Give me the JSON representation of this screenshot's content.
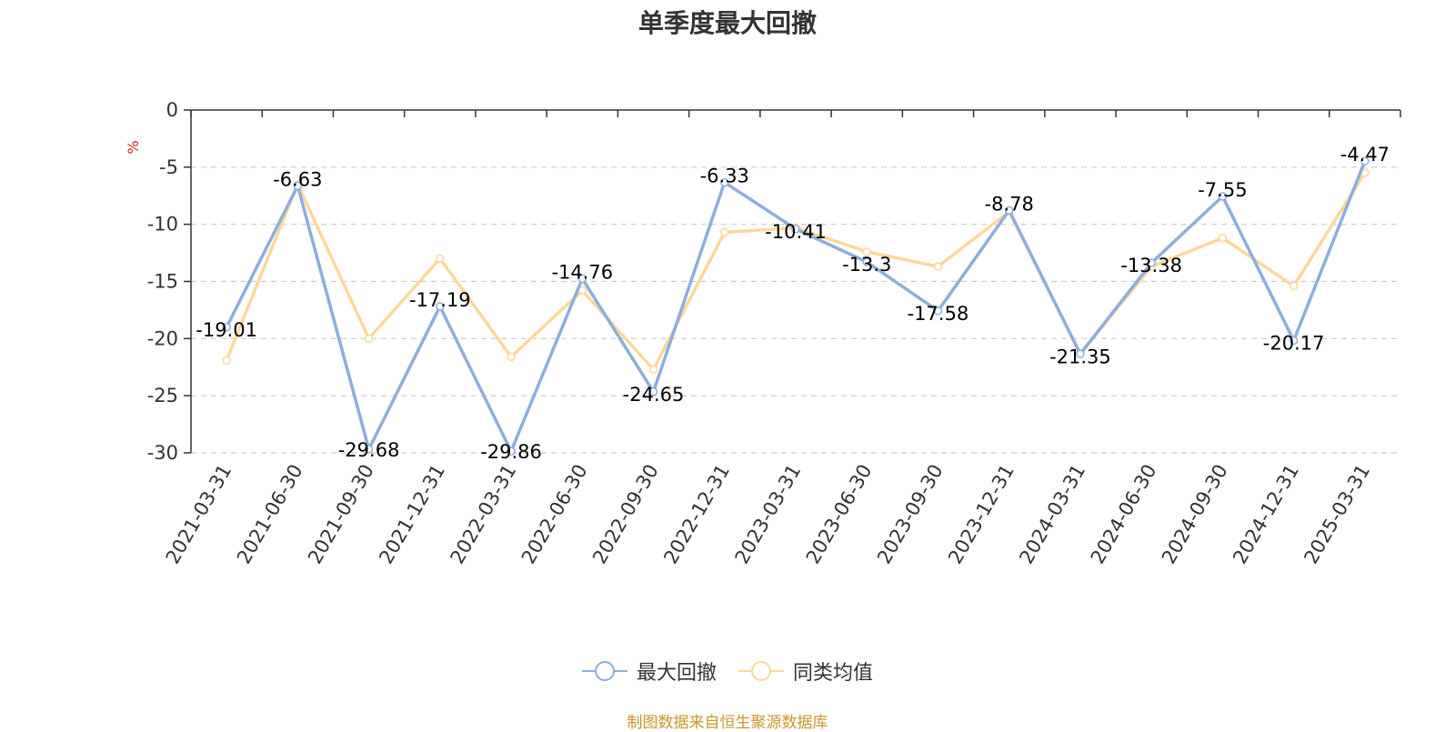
{
  "title": "单季度最大回撤",
  "source_note": "制图数据来自恒生聚源数据库",
  "colors": {
    "series1": "#8eaedb",
    "series2": "#fbd89a",
    "axis": "#333333",
    "grid": "#cccccc",
    "unit": "#e02020"
  },
  "chart_data": {
    "type": "line",
    "title": "单季度最大回撤",
    "ylabel": "%",
    "xlabel": "",
    "ylim": [
      -30,
      0
    ],
    "yticks": [
      0,
      -5,
      -10,
      -15,
      -20,
      -25,
      -30
    ],
    "grid": true,
    "legend_position": "bottom-center",
    "x": [
      "2021-03-31",
      "2021-06-30",
      "2021-09-30",
      "2021-12-31",
      "2022-03-31",
      "2022-06-30",
      "2022-09-30",
      "2022-12-31",
      "2023-03-31",
      "2023-06-30",
      "2023-09-30",
      "2023-12-31",
      "2024-03-31",
      "2024-06-30",
      "2024-09-30",
      "2024-12-31",
      "2025-03-31"
    ],
    "series": [
      {
        "name": "最大回撤",
        "values": [
          -19.01,
          -6.63,
          -29.68,
          -17.19,
          -29.86,
          -14.76,
          -24.65,
          -6.33,
          -10.41,
          -13.3,
          -17.58,
          -8.78,
          -21.35,
          -13.38,
          -7.55,
          -20.17,
          -4.47
        ],
        "labels": [
          "-19.01",
          "-6.63",
          "-29.68",
          "-17.19",
          "-29.86",
          "-14.76",
          "-24.65",
          "-6.33",
          "-10.41",
          "-13.3",
          "-17.58",
          "-8.78",
          "-21.35",
          "-13.38",
          "-7.55",
          "-20.17",
          "-4.47"
        ]
      },
      {
        "name": "同类均值",
        "values": [
          -21.9,
          -6.5,
          -20.0,
          -13.0,
          -21.6,
          -15.8,
          -22.7,
          -10.7,
          -10.3,
          -12.4,
          -13.7,
          -8.9,
          -21.3,
          -13.7,
          -11.2,
          -15.4,
          -5.5
        ]
      }
    ]
  }
}
